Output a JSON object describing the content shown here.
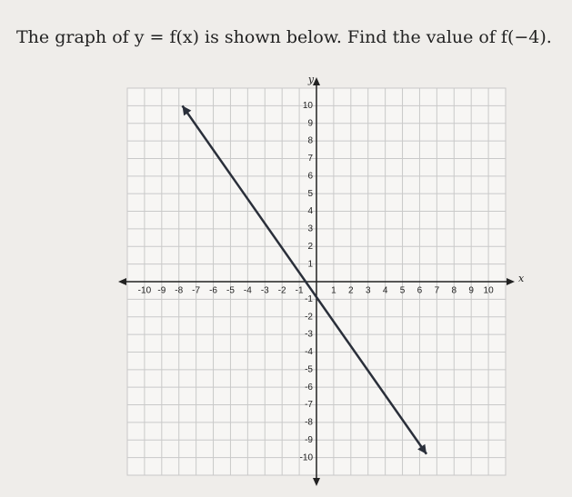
{
  "chart_data": {
    "type": "line",
    "title": "The graph of y = f(x) is shown below. Find the value of f(−4).",
    "x_label": "x",
    "y_label": "y",
    "x": [
      -7.8,
      6.4
    ],
    "series": [
      {
        "color": "#2a2f3a",
        "values": [
          10,
          -9.8
        ]
      }
    ],
    "xlim": [
      -11,
      11
    ],
    "ylim": [
      -11,
      11
    ],
    "xticks": [
      -10,
      -9,
      -8,
      -7,
      -6,
      -5,
      -4,
      -3,
      -2,
      -1,
      1,
      2,
      3,
      4,
      5,
      6,
      7,
      8,
      9,
      10
    ],
    "yticks": [
      -10,
      -9,
      -8,
      -7,
      -6,
      -5,
      -4,
      -3,
      -2,
      -1,
      1,
      2,
      3,
      4,
      5,
      6,
      7,
      8,
      9,
      10
    ],
    "grid": true
  }
}
